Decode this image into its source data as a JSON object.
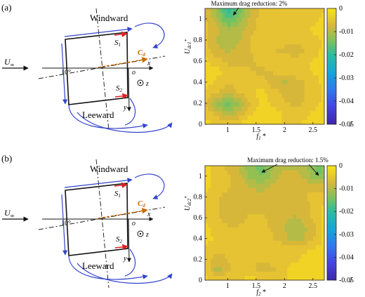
{
  "panels": [
    {
      "label": "(a)",
      "windward": "Windward",
      "leeward": "Leeward",
      "u_inf": "U",
      "u_inf_sub": "∞",
      "angle": "10°",
      "s_top": "S",
      "s_top_sub": "1",
      "s_bot": "S",
      "s_bot_sub": "2",
      "cd": "C",
      "cd_sub": "d",
      "axis_x": "x",
      "axis_y": "y",
      "axis_z": "z",
      "origin": "o"
    },
    {
      "label": "(b)",
      "windward": "Windward",
      "leeward": "Leeward",
      "u_inf": "U",
      "u_inf_sub": "∞",
      "angle": "10°",
      "s_top": "S",
      "s_top_sub": "1",
      "s_bot": "S",
      "s_bot_sub": "2",
      "cd": "C",
      "cd_sub": "d",
      "axis_x": "x",
      "axis_y": "y",
      "axis_z": "z",
      "origin": "o"
    }
  ],
  "colors": {
    "flow_arrow": "#3344cc",
    "body": "#111111",
    "cd_arrow": "#cc6600",
    "s_arrow": "#dd2222"
  },
  "chart_data": [
    {
      "type": "heatmap",
      "annotation": "Maximum drag reduction: 2%",
      "xlabel": "f",
      "xlabel_sub": "1",
      "xlabel_sup": "*",
      "ylabel": "U",
      "ylabel_sub": "dc1",
      "ylabel_sup": "*",
      "xlim": [
        0.6,
        2.7
      ],
      "ylim": [
        0,
        1.1
      ],
      "xticks": [
        "1",
        "1.5",
        "2",
        "2.5"
      ],
      "xtick_values": [
        1,
        1.5,
        2,
        2.5
      ],
      "yticks": [
        "0",
        "0.2",
        "0.4",
        "0.6",
        "0.8",
        "1"
      ],
      "ytick_values": [
        0,
        0.2,
        0.4,
        0.6,
        0.8,
        1
      ],
      "colorbar": {
        "label": "J",
        "min": -0.05,
        "max": 0,
        "ticks": [
          "0",
          "-0.01",
          "-0.02",
          "-0.03",
          "-0.04",
          "-0.05"
        ],
        "tick_values": [
          0,
          -0.01,
          -0.02,
          -0.03,
          -0.04,
          -0.05
        ]
      },
      "annotation_target": [
        1.05,
        1.05
      ],
      "x": [
        0.6,
        0.8,
        1.0,
        1.2,
        1.4,
        1.6,
        1.8,
        2.0,
        2.2,
        2.4,
        2.6,
        2.7
      ],
      "y": [
        0.0,
        0.1,
        0.2,
        0.3,
        0.4,
        0.5,
        0.6,
        0.7,
        0.8,
        0.9,
        1.0,
        1.1
      ],
      "z": [
        [
          -0.003,
          -0.004,
          -0.004,
          -0.003,
          -0.002,
          -0.002,
          -0.003,
          -0.004,
          -0.004,
          -0.003,
          -0.002,
          -0.002
        ],
        [
          -0.004,
          -0.007,
          -0.01,
          -0.008,
          -0.004,
          -0.002,
          -0.003,
          -0.004,
          -0.005,
          -0.004,
          -0.003,
          -0.002
        ],
        [
          -0.006,
          -0.012,
          -0.015,
          -0.012,
          -0.006,
          -0.003,
          -0.004,
          -0.006,
          -0.007,
          -0.006,
          -0.004,
          -0.003
        ],
        [
          -0.004,
          -0.006,
          -0.008,
          -0.006,
          -0.004,
          -0.003,
          -0.005,
          -0.007,
          -0.008,
          -0.006,
          -0.004,
          -0.003
        ],
        [
          -0.003,
          -0.004,
          -0.006,
          -0.005,
          -0.004,
          -0.005,
          -0.008,
          -0.009,
          -0.008,
          -0.006,
          -0.004,
          -0.003
        ],
        [
          -0.002,
          -0.003,
          -0.004,
          -0.005,
          -0.006,
          -0.007,
          -0.006,
          -0.005,
          -0.004,
          -0.004,
          -0.003,
          -0.002
        ],
        [
          -0.003,
          -0.005,
          -0.007,
          -0.008,
          -0.007,
          -0.005,
          -0.004,
          -0.004,
          -0.005,
          -0.004,
          -0.003,
          -0.002
        ],
        [
          -0.005,
          -0.008,
          -0.009,
          -0.008,
          -0.006,
          -0.005,
          -0.006,
          -0.007,
          -0.008,
          -0.006,
          -0.004,
          -0.003
        ],
        [
          -0.006,
          -0.009,
          -0.01,
          -0.009,
          -0.006,
          -0.004,
          -0.004,
          -0.005,
          -0.006,
          -0.005,
          -0.004,
          -0.003
        ],
        [
          -0.005,
          -0.008,
          -0.011,
          -0.01,
          -0.007,
          -0.005,
          -0.004,
          -0.004,
          -0.004,
          -0.004,
          -0.003,
          -0.003
        ],
        [
          -0.006,
          -0.01,
          -0.017,
          -0.013,
          -0.008,
          -0.005,
          -0.004,
          -0.004,
          -0.005,
          -0.005,
          -0.004,
          -0.003
        ],
        [
          -0.007,
          -0.012,
          -0.02,
          -0.015,
          -0.009,
          -0.006,
          -0.005,
          -0.005,
          -0.006,
          -0.006,
          -0.005,
          -0.004
        ]
      ]
    },
    {
      "type": "heatmap",
      "annotation": "Maximum drag reduction: 1.5%",
      "xlabel": "f",
      "xlabel_sub": "2",
      "xlabel_sup": "*",
      "ylabel": "U",
      "ylabel_sub": "dc2",
      "ylabel_sup": "*",
      "xlim": [
        0.6,
        2.7
      ],
      "ylim": [
        0,
        1.1
      ],
      "xticks": [
        "1",
        "1.5",
        "2",
        "2.5"
      ],
      "xtick_values": [
        1,
        1.5,
        2,
        2.5
      ],
      "yticks": [
        "0",
        "0.2",
        "0.4",
        "0.6",
        "0.8",
        "1"
      ],
      "ytick_values": [
        0,
        0.2,
        0.4,
        0.6,
        0.8,
        1
      ],
      "colorbar": {
        "label": "J",
        "min": -0.05,
        "max": 0,
        "ticks": [
          "0",
          "-0.01",
          "-0.02",
          "-0.03",
          "-0.04",
          "-0.05"
        ],
        "tick_values": [
          0,
          -0.01,
          -0.02,
          -0.03,
          -0.04,
          -0.05
        ]
      },
      "annotation_targets": [
        [
          1.6,
          1.05
        ],
        [
          2.6,
          1.02
        ]
      ],
      "x": [
        0.6,
        0.8,
        1.0,
        1.2,
        1.4,
        1.6,
        1.8,
        2.0,
        2.2,
        2.4,
        2.6,
        2.7
      ],
      "y": [
        0.0,
        0.1,
        0.2,
        0.3,
        0.4,
        0.5,
        0.6,
        0.7,
        0.8,
        0.9,
        1.0,
        1.1
      ],
      "z": [
        [
          -0.003,
          -0.004,
          -0.004,
          -0.004,
          -0.003,
          -0.003,
          -0.004,
          -0.004,
          -0.003,
          -0.003,
          -0.002,
          -0.002
        ],
        [
          -0.004,
          -0.01,
          -0.007,
          -0.004,
          -0.005,
          -0.008,
          -0.007,
          -0.004,
          -0.003,
          -0.003,
          -0.002,
          -0.002
        ],
        [
          -0.005,
          -0.008,
          -0.006,
          -0.005,
          -0.006,
          -0.006,
          -0.005,
          -0.004,
          -0.004,
          -0.003,
          -0.003,
          -0.002
        ],
        [
          -0.004,
          -0.005,
          -0.006,
          -0.006,
          -0.005,
          -0.004,
          -0.004,
          -0.005,
          -0.005,
          -0.004,
          -0.003,
          -0.002
        ],
        [
          -0.003,
          -0.004,
          -0.005,
          -0.005,
          -0.004,
          -0.004,
          -0.006,
          -0.008,
          -0.01,
          -0.008,
          -0.005,
          -0.003
        ],
        [
          -0.003,
          -0.005,
          -0.006,
          -0.006,
          -0.005,
          -0.005,
          -0.007,
          -0.009,
          -0.011,
          -0.009,
          -0.006,
          -0.003
        ],
        [
          -0.004,
          -0.006,
          -0.007,
          -0.007,
          -0.006,
          -0.006,
          -0.007,
          -0.008,
          -0.009,
          -0.007,
          -0.005,
          -0.003
        ],
        [
          -0.004,
          -0.006,
          -0.007,
          -0.007,
          -0.007,
          -0.007,
          -0.007,
          -0.008,
          -0.008,
          -0.007,
          -0.005,
          -0.003
        ],
        [
          -0.004,
          -0.006,
          -0.007,
          -0.007,
          -0.007,
          -0.007,
          -0.007,
          -0.007,
          -0.007,
          -0.006,
          -0.005,
          -0.004
        ],
        [
          -0.003,
          -0.005,
          -0.006,
          -0.007,
          -0.009,
          -0.01,
          -0.008,
          -0.007,
          -0.007,
          -0.007,
          -0.008,
          -0.007
        ],
        [
          -0.003,
          -0.005,
          -0.006,
          -0.008,
          -0.012,
          -0.014,
          -0.01,
          -0.008,
          -0.008,
          -0.01,
          -0.014,
          -0.012
        ],
        [
          -0.003,
          -0.005,
          -0.007,
          -0.009,
          -0.013,
          -0.015,
          -0.011,
          -0.009,
          -0.009,
          -0.011,
          -0.015,
          -0.013
        ]
      ]
    }
  ]
}
